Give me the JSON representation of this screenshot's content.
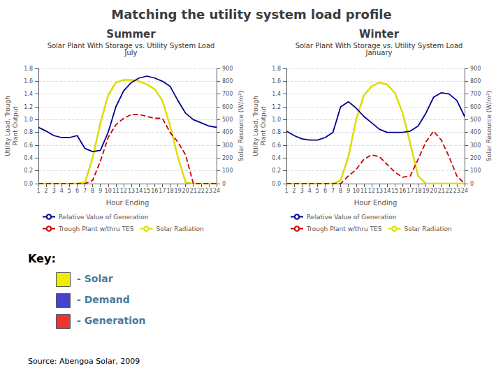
{
  "title": "Matching the utility system load profile",
  "source": "Source: Abengoa Solar, 2009",
  "key": {
    "title": "Key:",
    "items": [
      {
        "label": "- Solar",
        "color": "#eeee00"
      },
      {
        "label": "- Demand",
        "color": "#4444cc"
      },
      {
        "label": "- Generation",
        "color": "#ee3333"
      }
    ]
  },
  "chart_data": [
    {
      "type": "line",
      "title": "Summer",
      "subtitle": "Solar Plant With Storage vs. Utility System Load\nJuly",
      "xlabel": "Hour Ending",
      "ylabel": "Utility Load, Trough\nPlant Output",
      "y2label": "Solar Resource (W/m²)",
      "x": [
        1,
        2,
        3,
        4,
        5,
        6,
        7,
        8,
        9,
        10,
        11,
        12,
        13,
        14,
        15,
        16,
        17,
        18,
        19,
        20,
        21,
        22,
        23,
        24
      ],
      "xlim": [
        1,
        24
      ],
      "xticks": [
        1,
        2,
        3,
        4,
        5,
        6,
        7,
        8,
        9,
        10,
        11,
        12,
        13,
        14,
        15,
        16,
        17,
        18,
        19,
        20,
        21,
        22,
        23,
        24
      ],
      "ylim": [
        0.0,
        1.8
      ],
      "yticks": [
        {
          "value": 0.0,
          "label": "0.0"
        },
        0.2,
        0.4,
        0.6,
        0.8,
        {
          "value": 1.0,
          "label": "1.0"
        },
        1.2,
        1.4,
        1.6,
        1.8
      ],
      "y2lim": [
        0,
        900
      ],
      "y2ticks": [
        0,
        100,
        200,
        300,
        400,
        500,
        600,
        700,
        800,
        900
      ],
      "grid": true,
      "legend": "bottom",
      "series": [
        {
          "name": "Relative Value of Generation",
          "color": "#00008b",
          "line_style": "solid",
          "values": [
            0.88,
            0.82,
            0.75,
            0.72,
            0.72,
            0.75,
            0.55,
            0.5,
            0.52,
            0.8,
            1.2,
            1.45,
            1.58,
            1.65,
            1.68,
            1.65,
            1.6,
            1.52,
            1.3,
            1.1,
            1.0,
            0.95,
            0.9,
            0.88
          ]
        },
        {
          "name": "Trough Plant w/thru TES",
          "color": "#cc0000",
          "line_style": "dashed",
          "values": [
            0.0,
            0.0,
            0.0,
            0.0,
            0.0,
            0.0,
            0.0,
            0.05,
            0.35,
            0.72,
            0.92,
            1.02,
            1.08,
            1.08,
            1.05,
            1.02,
            1.02,
            0.8,
            0.65,
            0.45,
            0.0,
            0.0,
            0.0,
            0.0
          ]
        },
        {
          "name": "Solar Radiation",
          "color": "#dddd00",
          "line_style": "solid",
          "axis": "y2",
          "values": [
            0,
            0,
            0,
            0,
            0,
            0,
            10,
            200,
            475,
            690,
            790,
            810,
            810,
            800,
            775,
            740,
            650,
            450,
            210,
            10,
            0,
            0,
            0,
            0
          ]
        }
      ]
    },
    {
      "type": "line",
      "title": "Winter",
      "subtitle": "Solar Plant With Storage vs. Utility System Load\nJanuary",
      "xlabel": "Hour Ending",
      "ylabel": "Utility Load, Trough\nPlant Output",
      "y2label": "Solar Resource (W/m²)",
      "x": [
        1,
        2,
        3,
        4,
        5,
        6,
        7,
        8,
        9,
        10,
        11,
        12,
        13,
        14,
        15,
        16,
        17,
        18,
        19,
        20,
        21,
        22,
        23,
        24
      ],
      "xlim": [
        1,
        24
      ],
      "xticks": [
        1,
        2,
        3,
        4,
        5,
        6,
        7,
        8,
        9,
        10,
        11,
        12,
        13,
        14,
        15,
        16,
        17,
        18,
        19,
        20,
        21,
        22,
        23,
        24
      ],
      "ylim": [
        0.0,
        1.8
      ],
      "yticks": [
        {
          "value": 0.0,
          "label": "0.0"
        },
        0.2,
        0.4,
        0.6,
        0.8,
        {
          "value": 1.0,
          "label": "1.0"
        },
        1.2,
        1.4,
        1.6,
        1.8
      ],
      "y2lim": [
        0,
        900
      ],
      "y2ticks": [
        0,
        100,
        200,
        300,
        400,
        500,
        600,
        700,
        800,
        900
      ],
      "grid": true,
      "legend": "bottom",
      "series": [
        {
          "name": "Relative Value of Generation",
          "color": "#00008b",
          "line_style": "solid",
          "values": [
            0.82,
            0.75,
            0.7,
            0.68,
            0.68,
            0.72,
            0.8,
            1.2,
            1.28,
            1.18,
            1.05,
            0.95,
            0.85,
            0.8,
            0.8,
            0.8,
            0.82,
            0.9,
            1.1,
            1.35,
            1.42,
            1.4,
            1.3,
            1.05
          ]
        },
        {
          "name": "Trough Plant w/thru TES",
          "color": "#cc0000",
          "line_style": "dashed",
          "values": [
            0.0,
            0.0,
            0.0,
            0.0,
            0.0,
            0.0,
            0.0,
            0.0,
            0.12,
            0.22,
            0.38,
            0.45,
            0.42,
            0.3,
            0.18,
            0.1,
            0.12,
            0.38,
            0.65,
            0.82,
            0.68,
            0.42,
            0.12,
            0.0
          ]
        },
        {
          "name": "Solar Radiation",
          "color": "#dddd00",
          "line_style": "solid",
          "axis": "y2",
          "values": [
            0,
            0,
            0,
            0,
            0,
            0,
            0,
            25,
            210,
            500,
            690,
            760,
            790,
            775,
            710,
            550,
            310,
            60,
            0,
            0,
            0,
            0,
            0,
            0
          ]
        }
      ]
    }
  ]
}
